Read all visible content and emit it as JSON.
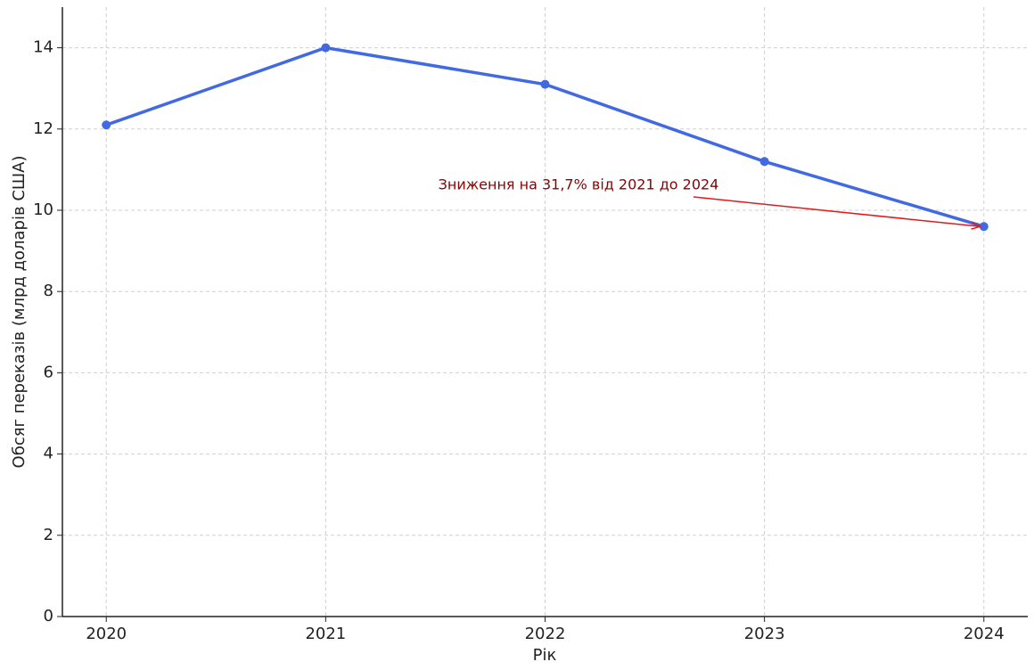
{
  "chart_data": {
    "type": "line",
    "x": [
      2020,
      2021,
      2022,
      2023,
      2024
    ],
    "values": [
      12.1,
      14.0,
      13.1,
      11.2,
      9.6
    ],
    "color": "#4169e1",
    "xlabel": "Рік",
    "ylabel": "Обсяг переказів (млрд доларів США)",
    "xlim": [
      2019.8,
      2024.2
    ],
    "xticks": [
      2020,
      2021,
      2022,
      2023,
      2024
    ],
    "ylim": [
      0,
      15
    ],
    "yticks": [
      0,
      2,
      4,
      6,
      8,
      10,
      12,
      14
    ],
    "grid": true,
    "annotation": {
      "text": "Зниження на 31,7% від 2021 до 2024",
      "color": "#8b0000",
      "arrow_color": "#e31a1c"
    }
  }
}
